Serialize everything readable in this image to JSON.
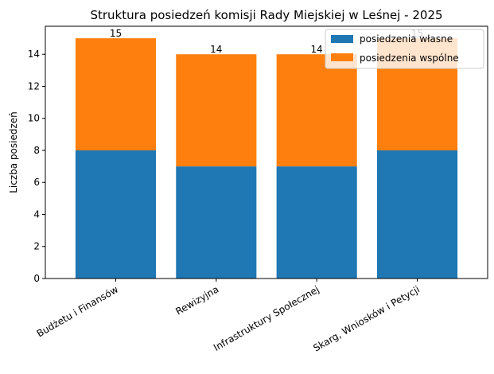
{
  "chart_data": {
    "type": "bar",
    "stacked": true,
    "title": "Struktura posiedzeń komisji Rady Miejskiej w Leśnej - 2025",
    "xlabel": "",
    "ylabel": "Liczba posiedzeń",
    "ylim": [
      0,
      15.75
    ],
    "yticks": [
      0,
      2,
      4,
      6,
      8,
      10,
      12,
      14
    ],
    "categories": [
      "Budżetu i Finansów",
      "Rewizyjna",
      "Infrastruktury Społecznej",
      "Skarg, Wniosków i Petycji"
    ],
    "series": [
      {
        "name": "posiedzenia własne",
        "values": [
          8,
          7,
          7,
          8
        ],
        "color": "#1f77b4"
      },
      {
        "name": "posiedzenia wspólne",
        "values": [
          7,
          7,
          7,
          7
        ],
        "color": "#ff7f0e"
      }
    ],
    "totals": [
      "15",
      "14",
      "14",
      "15"
    ],
    "legend": "top-right",
    "grid": false
  }
}
